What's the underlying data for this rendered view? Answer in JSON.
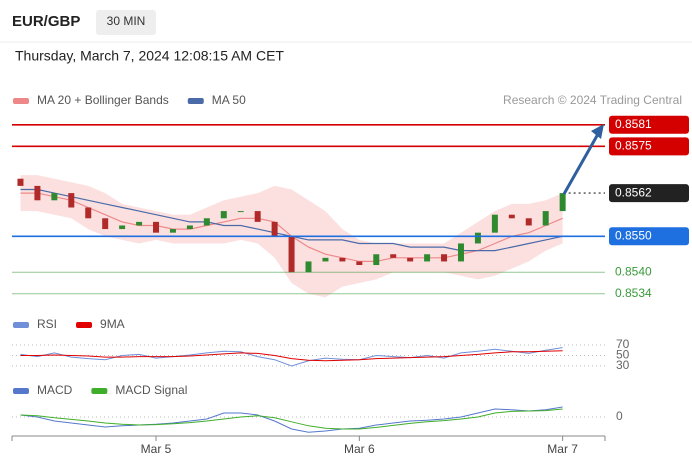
{
  "header": {
    "symbol": "EUR/GBP",
    "interval": "30 MIN",
    "timestamp": "Thursday, March 7, 2024 12:08:15 AM CET"
  },
  "chart_data": [
    {
      "type": "candlestick",
      "source": "Research © 2024 Trading Central",
      "up_color": "#2f8a2f",
      "down_color": "#b02a2a",
      "open": [
        0.8566,
        0.8564,
        0.856,
        0.8562,
        0.8558,
        0.8555,
        0.8552,
        0.8553,
        0.8554,
        0.8551,
        0.8552,
        0.8553,
        0.8555,
        0.8557,
        0.8557,
        0.8554,
        0.855,
        0.854,
        0.8543,
        0.8544,
        0.8543,
        0.8542,
        0.8545,
        0.8544,
        0.8543,
        0.8545,
        0.8543,
        0.8548,
        0.8551,
        0.8556,
        0.8555,
        0.8553,
        0.8557,
        null,
        null
      ],
      "close": [
        0.8564,
        0.856,
        0.8562,
        0.8558,
        0.8555,
        0.8552,
        0.8553,
        0.8554,
        0.8551,
        0.8552,
        0.8553,
        0.8555,
        0.8557,
        0.8557,
        0.8554,
        0.855,
        0.854,
        0.8543,
        0.8544,
        0.8543,
        0.8542,
        0.8545,
        0.8544,
        0.8543,
        0.8545,
        0.8543,
        0.8548,
        0.8551,
        0.8556,
        0.8555,
        0.8553,
        0.8557,
        0.8562,
        null,
        null
      ],
      "overlays": [
        {
          "name": "MA 20 + Bollinger Bands",
          "color": "#ee8888",
          "band_color": "#fbd3d3",
          "values": [
            0.8562,
            0.8562,
            0.8561,
            0.856,
            0.8558,
            0.8556,
            0.8554,
            0.8553,
            0.8553,
            0.8552,
            0.8552,
            0.8553,
            0.8554,
            0.8555,
            0.8555,
            0.8554,
            0.855,
            0.8547,
            0.8545,
            0.8544,
            0.8543,
            0.8543,
            0.8544,
            0.8544,
            0.8544,
            0.8544,
            0.8545,
            0.8546,
            0.8548,
            0.855,
            0.8551,
            0.8553,
            0.8555,
            null,
            null
          ],
          "upper": [
            0.8567,
            0.8567,
            0.8566,
            0.8565,
            0.8564,
            0.8562,
            0.8559,
            0.8558,
            0.8557,
            0.8556,
            0.8556,
            0.8558,
            0.856,
            0.8561,
            0.8562,
            0.8564,
            0.8563,
            0.856,
            0.8557,
            0.8552,
            0.8549,
            0.8548,
            0.8548,
            0.8548,
            0.8548,
            0.8548,
            0.8551,
            0.8554,
            0.8557,
            0.8559,
            0.8559,
            0.856,
            0.8562,
            null,
            null
          ],
          "lower": [
            0.8557,
            0.8557,
            0.8556,
            0.8555,
            0.8552,
            0.855,
            0.8549,
            0.8548,
            0.8549,
            0.8548,
            0.8548,
            0.8548,
            0.8548,
            0.8549,
            0.8548,
            0.8544,
            0.8537,
            0.8534,
            0.8533,
            0.8536,
            0.8537,
            0.8538,
            0.854,
            0.854,
            0.854,
            0.854,
            0.8539,
            0.8538,
            0.8539,
            0.8541,
            0.8543,
            0.8546,
            0.8548,
            null,
            null
          ]
        },
        {
          "name": "MA 50",
          "color": "#4a6aa8",
          "values": [
            0.8563,
            0.8563,
            0.8562,
            0.8561,
            0.856,
            0.8559,
            0.8558,
            0.8557,
            0.8556,
            0.8555,
            0.8554,
            0.8554,
            0.8553,
            0.8553,
            0.8552,
            0.8551,
            0.855,
            0.8549,
            0.8549,
            0.8549,
            0.8548,
            0.8548,
            0.8548,
            0.8547,
            0.8547,
            0.8547,
            0.8546,
            0.8546,
            0.8546,
            0.8547,
            0.8548,
            0.8549,
            0.855,
            null,
            null
          ]
        }
      ],
      "ylim": [
        0.8532,
        0.8589
      ],
      "levels": [
        {
          "value": 0.8581,
          "color": "#d40000",
          "boxed": true,
          "dotted": false
        },
        {
          "value": 0.8575,
          "color": "#d40000",
          "boxed": true,
          "dotted": false
        },
        {
          "value": 0.8562,
          "color": "#222222",
          "boxed": true,
          "dotted": true
        },
        {
          "value": 0.855,
          "label": "0.8550",
          "color": "#1e6fe0",
          "boxed": true,
          "dotted": false
        },
        {
          "value": 0.854,
          "label": "0.8540",
          "color": "#3a9a3a",
          "boxed": false,
          "dotted": false
        },
        {
          "value": 0.8534,
          "color": "#3a9a3a",
          "boxed": false,
          "dotted": false
        }
      ]
    },
    {
      "type": "line",
      "series": [
        {
          "name": "RSI",
          "color": "#6f8fd8",
          "values": [
            52,
            48,
            55,
            47,
            44,
            42,
            50,
            52,
            45,
            48,
            51,
            55,
            58,
            57,
            48,
            42,
            30,
            40,
            45,
            43,
            42,
            50,
            48,
            46,
            50,
            45,
            55,
            58,
            62,
            58,
            54,
            60,
            65,
            null,
            null
          ]
        },
        {
          "name": "9MA",
          "color": "#e00000",
          "values": [
            50,
            50,
            51,
            50,
            49,
            47,
            47,
            48,
            48,
            48,
            49,
            51,
            53,
            55,
            54,
            50,
            44,
            41,
            40,
            41,
            42,
            44,
            45,
            46,
            47,
            48,
            50,
            52,
            55,
            57,
            57,
            58,
            59,
            null,
            null
          ]
        }
      ],
      "ylim": [
        0,
        100
      ],
      "yticks": [
        70,
        50,
        30
      ]
    },
    {
      "type": "line",
      "categories": [
        null,
        null,
        null,
        null,
        null,
        null,
        null,
        null,
        "Mar 5",
        null,
        null,
        null,
        null,
        null,
        null,
        null,
        null,
        null,
        null,
        null,
        "Mar 6",
        null,
        null,
        null,
        null,
        null,
        null,
        null,
        null,
        null,
        null,
        null,
        "Mar 7",
        null,
        null
      ],
      "series": [
        {
          "name": "MACD",
          "color": "#5577cc",
          "values": [
            5e-05,
            0,
            -0.0001,
            -0.00015,
            -0.0002,
            -0.00025,
            -0.00022,
            -0.0002,
            -0.00018,
            -0.00015,
            -0.0001,
            -5e-05,
            0.0001,
            0.0001,
            5e-05,
            -0.0001,
            -0.0003,
            -0.00038,
            -0.00035,
            -0.0003,
            -0.00028,
            -0.0002,
            -0.00015,
            -0.0001,
            -8e-05,
            -5e-05,
            0,
            0.0001,
            0.0002,
            0.00018,
            0.00015,
            0.00018,
            0.00025,
            null,
            null
          ]
        },
        {
          "name": "MACD Signal",
          "color": "#3fae2a",
          "values": [
            5e-05,
            3e-05,
            -2e-05,
            -6e-05,
            -0.0001,
            -0.00015,
            -0.00018,
            -0.0002,
            -0.00019,
            -0.00017,
            -0.00014,
            -0.0001,
            -5e-05,
            0,
            3e-05,
            -2e-05,
            -0.00012,
            -0.00022,
            -0.00028,
            -0.0003,
            -0.0003,
            -0.00026,
            -0.00021,
            -0.00016,
            -0.00012,
            -9e-05,
            -5e-05,
            0,
            0.0001,
            0.00014,
            0.00015,
            0.00016,
            0.0002,
            null,
            null
          ]
        }
      ],
      "ylim": [
        -0.0005,
        0.0005
      ],
      "yticks": [
        0
      ]
    }
  ]
}
